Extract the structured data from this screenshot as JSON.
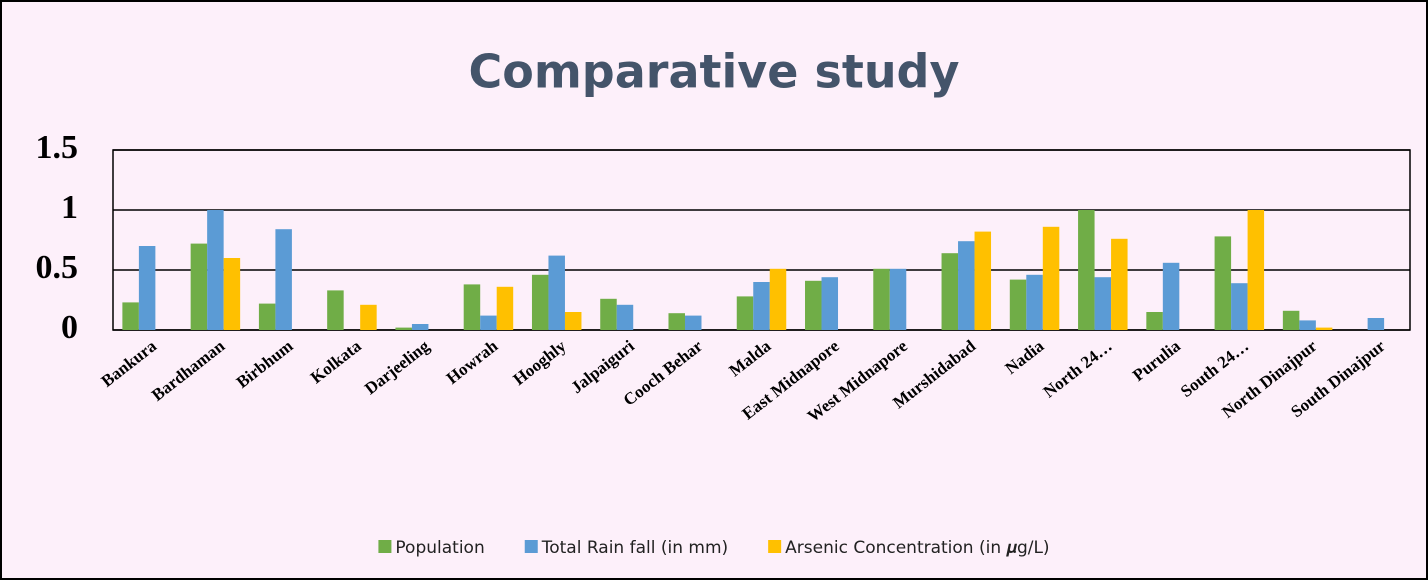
{
  "chart_data": {
    "type": "bar",
    "title": "Comparative study",
    "categories": [
      "Bankura",
      "Bardhaman",
      "Birbhum",
      "Kolkata",
      "Darjeeling",
      "Howrah",
      "Hooghly",
      "Jalpaiguri",
      "Cooch Behar",
      "Malda",
      "East Midnapore",
      "West Midnapore",
      "Murshidabad",
      "Nadia",
      "North 24…",
      "Purulia",
      "South 24…",
      "North Dinajpur",
      "South Dinajpur"
    ],
    "series": [
      {
        "name": "Population",
        "color": "#70ad47",
        "values": [
          0.23,
          0.72,
          0.22,
          0.33,
          0.02,
          0.38,
          0.46,
          0.26,
          0.14,
          0.28,
          0.41,
          0.51,
          0.64,
          0.42,
          1.0,
          0.15,
          0.78,
          0.16,
          0
        ]
      },
      {
        "name": "Total Rain fall (in mm)",
        "color": "#5b9bd5",
        "values": [
          0.7,
          1.0,
          0.84,
          0,
          0.05,
          0.12,
          0.62,
          0.21,
          0.12,
          0.4,
          0.44,
          0.51,
          0.74,
          0.46,
          0.44,
          0.56,
          0.39,
          0.08,
          0.1
        ]
      },
      {
        "name": "Arsenic Concentration (in 𝝁g/L)",
        "color": "#ffc000",
        "values": [
          0,
          0.6,
          0,
          0.21,
          0,
          0.36,
          0.15,
          0,
          0,
          0.51,
          0,
          0,
          0.82,
          0.86,
          0.76,
          0,
          1.0,
          0.02,
          0
        ]
      }
    ],
    "ylim": [
      0,
      1.5
    ],
    "yticks": [
      0,
      0.5,
      1,
      1.5
    ],
    "grid": true
  }
}
